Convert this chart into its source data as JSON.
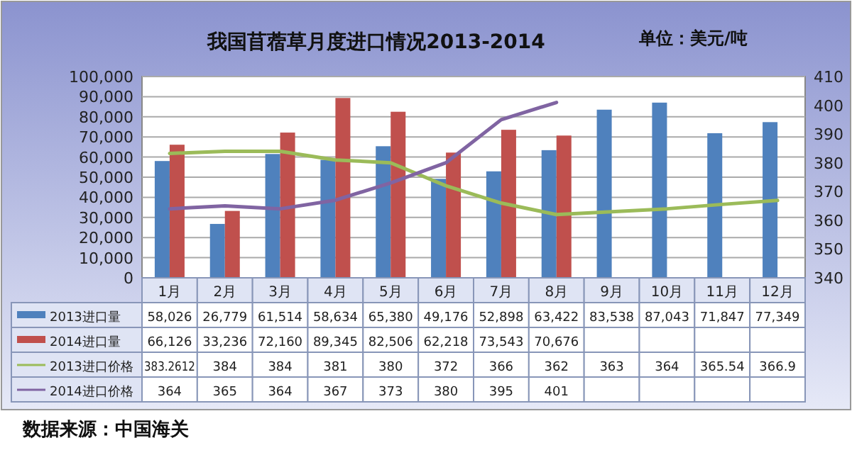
{
  "chart_data": {
    "type": "bar",
    "title": "我国苜蓿草月度进口情况2013-2014",
    "categories": [
      "1月",
      "2月",
      "3月",
      "4月",
      "5月",
      "6月",
      "7月",
      "8月",
      "9月",
      "10月",
      "11月",
      "12月"
    ],
    "series": [
      {
        "name": "2013进口量",
        "color": "#4f81bd",
        "values": [
          58026,
          26779,
          61514,
          58634,
          65380,
          49176,
          52898,
          63422,
          83538,
          87043,
          71847,
          77349
        ],
        "value_labels": [
          "58,026",
          "26,779",
          "61,514",
          "58,634",
          "65,380",
          "49,176",
          "52,898",
          "63,422",
          "83,538",
          "87,043",
          "71,847",
          "77,349"
        ]
      },
      {
        "name": "2014进口量",
        "color": "#c0504d",
        "values": [
          66126,
          33236,
          72160,
          89345,
          82506,
          62218,
          73543,
          70676,
          null,
          null,
          null,
          null
        ],
        "value_labels": [
          "66,126",
          "33,236",
          "72,160",
          "89,345",
          "82,506",
          "62,218",
          "73,543",
          "70,676",
          null,
          null,
          null,
          null
        ]
      },
      {
        "name": "2013进口价格",
        "type": "line",
        "axis": "y2",
        "color": "#9bbb59",
        "values": [
          383.2612,
          384,
          384,
          381,
          380,
          372,
          366,
          362,
          363,
          364,
          365.54,
          366.9
        ],
        "value_labels": [
          "383.2612",
          "384",
          "384",
          "381",
          "380",
          "372",
          "366",
          "362",
          "363",
          "364",
          "365.54",
          "366.9"
        ]
      },
      {
        "name": "2014进口价格",
        "type": "line",
        "axis": "y2",
        "color": "#8064a2",
        "values": [
          364,
          365,
          364,
          367,
          373,
          380,
          395,
          401,
          null,
          null,
          null,
          null
        ],
        "value_labels": [
          "364",
          "365",
          "364",
          "367",
          "373",
          "380",
          "395",
          "401",
          null,
          null,
          null,
          null
        ]
      }
    ],
    "ylim": [
      0,
      100000
    ],
    "yticks": [
      {
        "value": 0,
        "label": "0"
      },
      {
        "value": 10000,
        "label": "10,000"
      },
      {
        "value": 20000,
        "label": "20,000"
      },
      {
        "value": 30000,
        "label": "30,000"
      },
      {
        "value": 40000,
        "label": "40,000"
      },
      {
        "value": 50000,
        "label": "50,000"
      },
      {
        "value": 60000,
        "label": "60,000"
      },
      {
        "value": 70000,
        "label": "70,000"
      },
      {
        "value": 80000,
        "label": "80,000"
      },
      {
        "value": 90000,
        "label": "90,000"
      },
      {
        "value": 100000,
        "label": "100,000"
      }
    ],
    "y2lim": [
      340,
      410
    ],
    "y2ticks": [
      340,
      350,
      360,
      370,
      380,
      390,
      400,
      410
    ],
    "grid": "y",
    "legend": "bottom",
    "annotations": [
      "单位：美元/吨",
      "数据来源：中国海关"
    ]
  }
}
